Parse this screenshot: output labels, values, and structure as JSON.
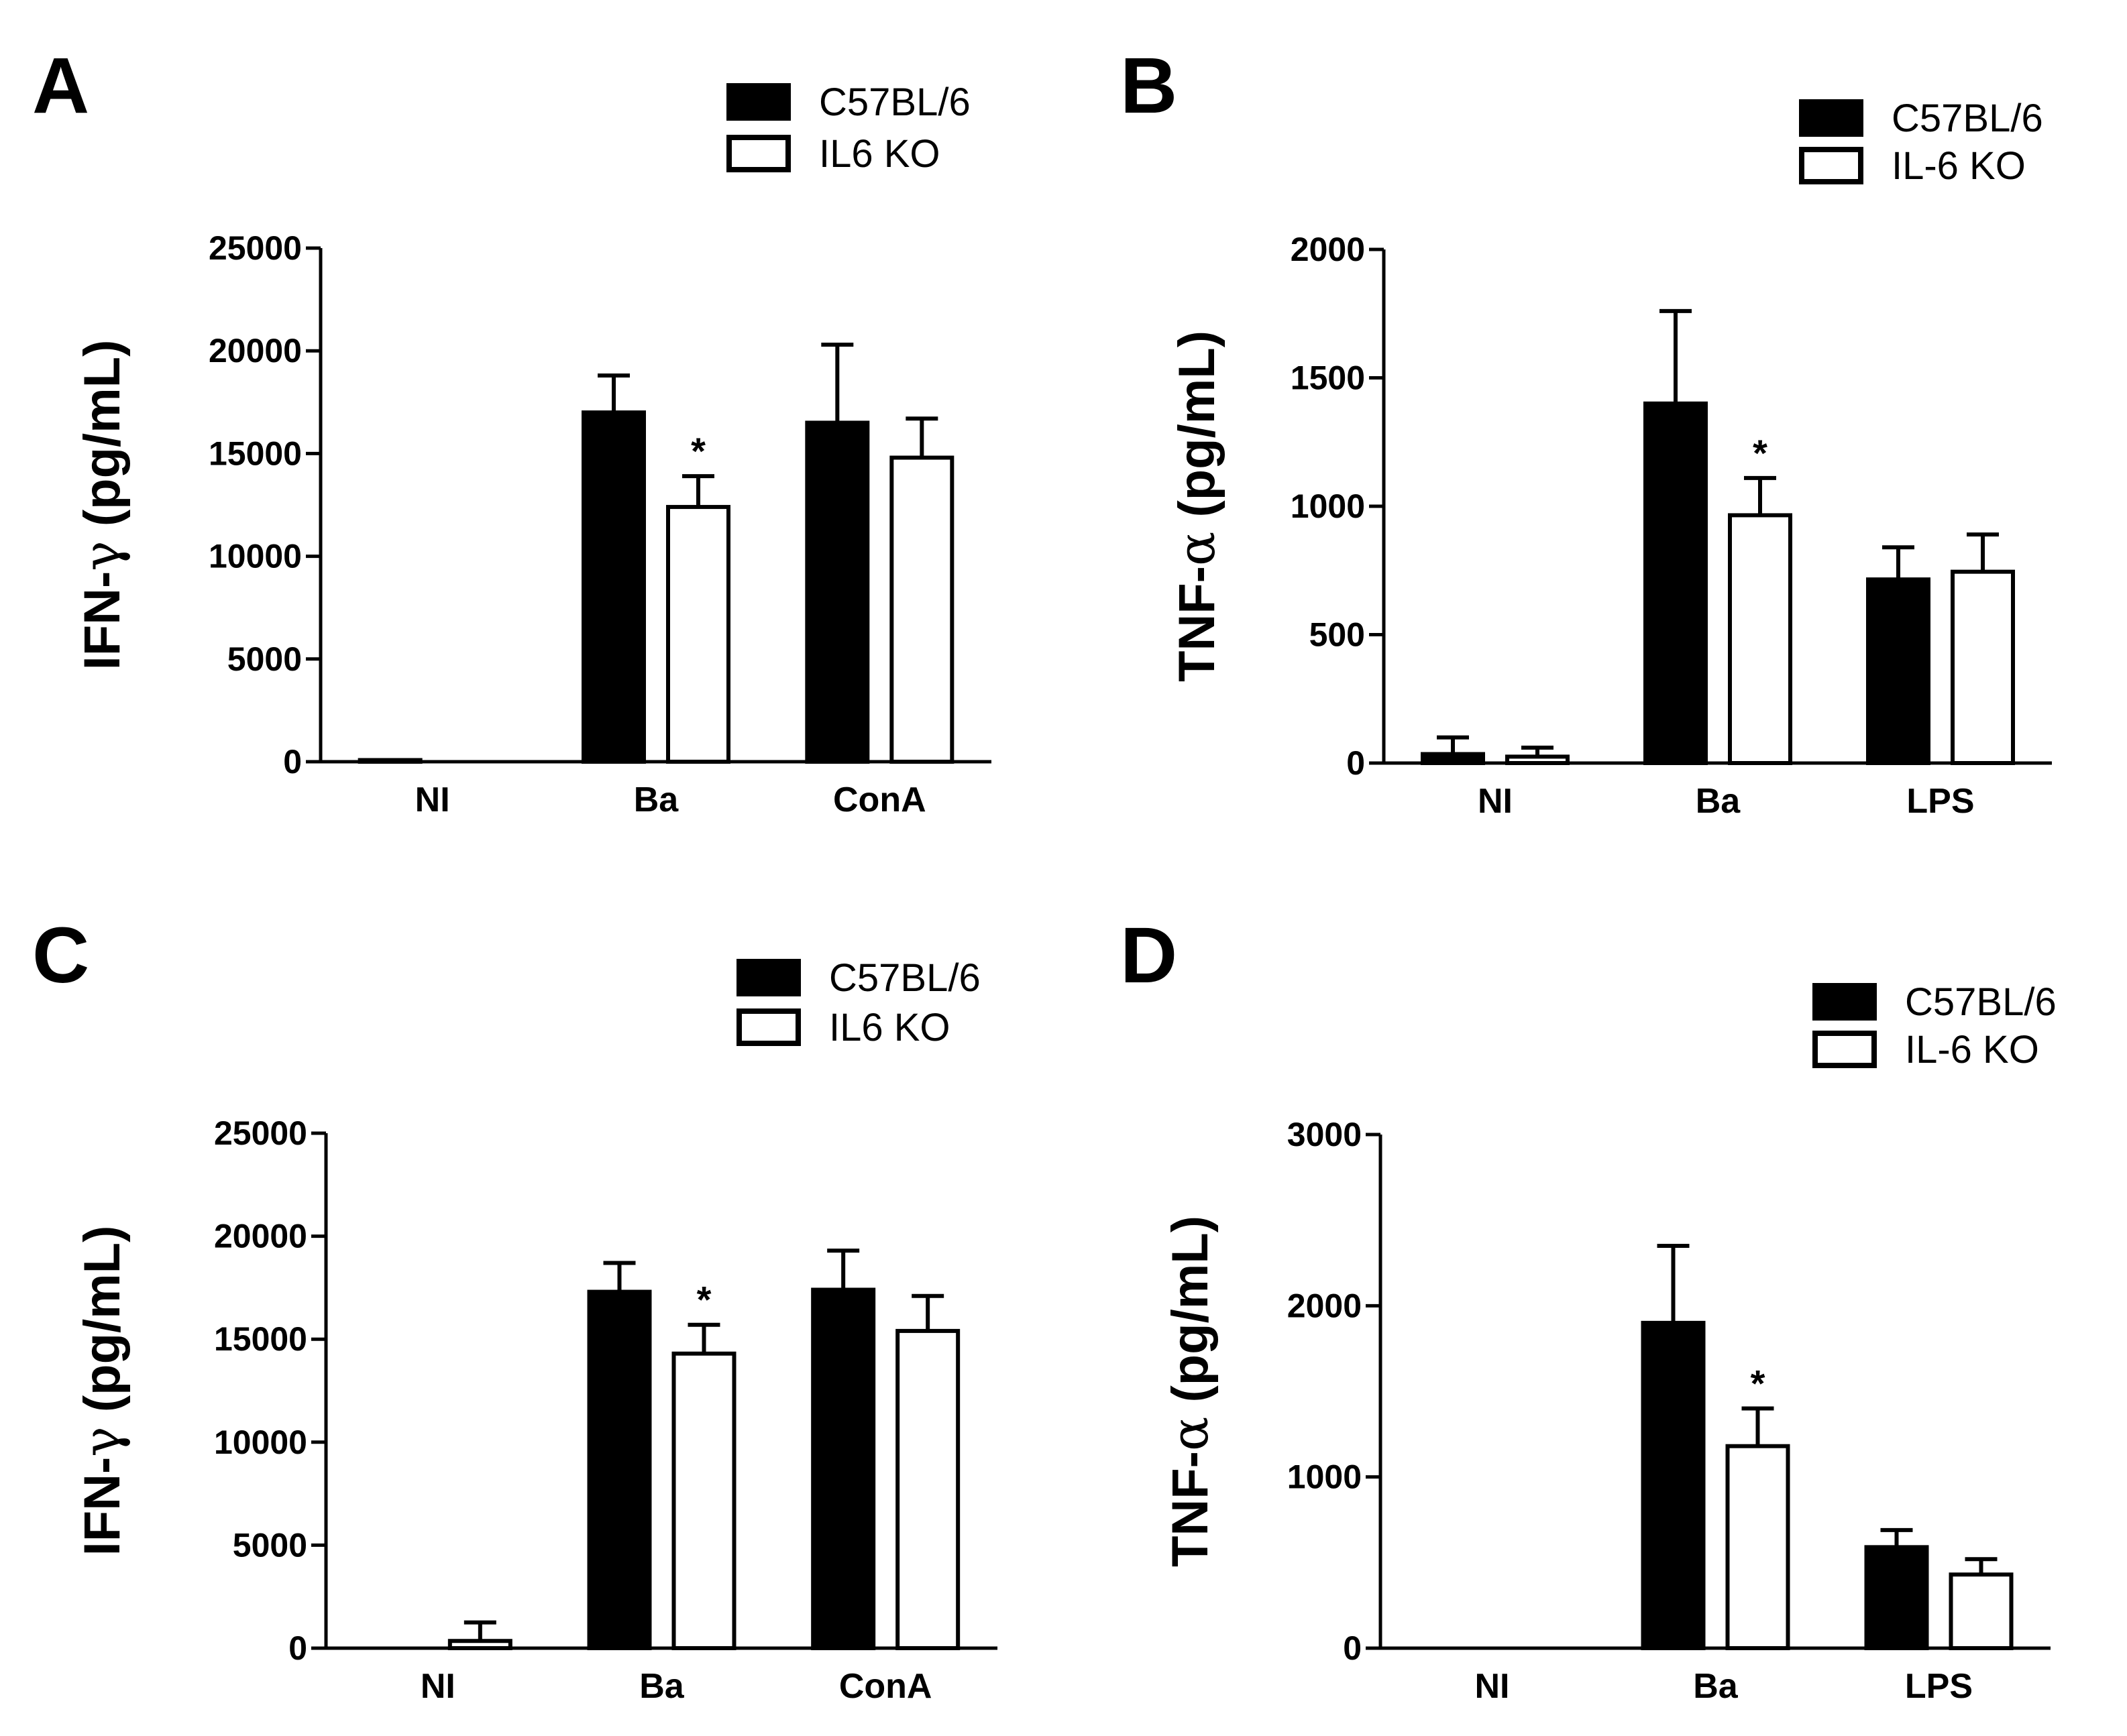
{
  "colors": {
    "series_fill": [
      "#000000",
      "#ffffff"
    ],
    "stroke": "#000000"
  },
  "chart_data": [
    {
      "panel": "A",
      "type": "bar",
      "legend": [
        "C57BL/6",
        "IL6 KO"
      ],
      "ylabel_prefix": "IFN-",
      "ylabel_greek": "γ",
      "ylabel_suffix": " (pg/mL)",
      "ylim": [
        0,
        25000
      ],
      "yticks": [
        0,
        5000,
        10000,
        15000,
        20000,
        25000
      ],
      "categories": [
        "NI",
        "Ba",
        "ConA"
      ],
      "series": [
        {
          "name": "C57BL/6",
          "values": [
            80,
            17000,
            16500
          ],
          "errors": [
            0,
            1800,
            3800
          ]
        },
        {
          "name": "IL6 KO",
          "values": [
            0,
            12400,
            14800
          ],
          "errors": [
            0,
            1500,
            1900
          ]
        }
      ],
      "significance": [
        {
          "category": "Ba",
          "series": 1,
          "mark": "*"
        }
      ]
    },
    {
      "panel": "B",
      "type": "bar",
      "legend": [
        "C57BL/6",
        "IL-6 KO"
      ],
      "ylabel_prefix": "TNF-",
      "ylabel_greek": "α",
      "ylabel_suffix": " (pg/mL)",
      "ylim": [
        0,
        2000
      ],
      "yticks": [
        0,
        500,
        1000,
        1500,
        2000
      ],
      "categories": [
        "NI",
        "Ba",
        "LPS"
      ],
      "series": [
        {
          "name": "C57BL/6",
          "values": [
            35,
            1400,
            715
          ],
          "errors": [
            65,
            360,
            125
          ]
        },
        {
          "name": "IL-6 KO",
          "values": [
            25,
            965,
            745
          ],
          "errors": [
            35,
            145,
            145
          ]
        }
      ],
      "significance": [
        {
          "category": "Ba",
          "series": 1,
          "mark": "*"
        }
      ]
    },
    {
      "panel": "C",
      "type": "bar",
      "legend": [
        "C57BL/6",
        "IL6 KO"
      ],
      "ylabel_prefix": "IFN-",
      "ylabel_greek": "γ",
      "ylabel_suffix": " (pg/mL)",
      "ylim": [
        0,
        25000
      ],
      "yticks": [
        0,
        5000,
        10000,
        15000,
        20000,
        25000
      ],
      "categories": [
        "NI",
        "Ba",
        "ConA"
      ],
      "series": [
        {
          "name": "C57BL/6",
          "values": [
            0,
            17300,
            17400
          ],
          "errors": [
            0,
            1400,
            1900
          ]
        },
        {
          "name": "IL6 KO",
          "values": [
            350,
            14300,
            15400
          ],
          "errors": [
            900,
            1400,
            1700
          ]
        }
      ],
      "significance": [
        {
          "category": "Ba",
          "series": 1,
          "mark": "*"
        }
      ]
    },
    {
      "panel": "D",
      "type": "bar",
      "legend": [
        "C57BL/6",
        "IL-6 KO"
      ],
      "ylabel_prefix": "TNF-",
      "ylabel_greek": "α",
      "ylabel_suffix": " (pg/mL)",
      "ylim": [
        0,
        3000
      ],
      "yticks": [
        0,
        1000,
        2000,
        3000
      ],
      "categories": [
        "NI",
        "Ba",
        "LPS"
      ],
      "series": [
        {
          "name": "C57BL/6",
          "values": [
            0,
            1900,
            590
          ],
          "errors": [
            0,
            450,
            100
          ]
        },
        {
          "name": "IL-6 KO",
          "values": [
            0,
            1180,
            430
          ],
          "errors": [
            0,
            220,
            90
          ]
        }
      ],
      "significance": [
        {
          "category": "Ba",
          "series": 1,
          "mark": "*"
        }
      ]
    }
  ]
}
